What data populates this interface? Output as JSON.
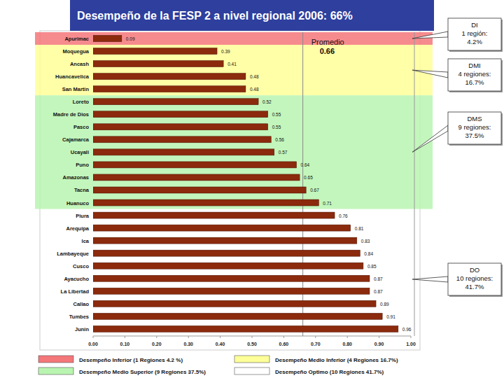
{
  "chart_data": {
    "type": "bar",
    "orientation": "horizontal",
    "title": "Desempeño de la FESP 2 a nivel regional 2006:   66%",
    "categories": [
      "Apurimac",
      "Moquegua",
      "Ancash",
      "Huancavelica",
      "San Martin",
      "Loreto",
      "Madre de Dios",
      "Pasco",
      "Cajamarca",
      "Ucayali",
      "Puno",
      "Amazonas",
      "Tacna",
      "Huanuco",
      "Piura",
      "Arequipa",
      "Ica",
      "Lambayeque",
      "Cusco",
      "Ayacucho",
      "La Libertad",
      "Callao",
      "Tumbes",
      "Junin"
    ],
    "values": [
      0.09,
      0.39,
      0.41,
      0.48,
      0.48,
      0.52,
      0.55,
      0.55,
      0.56,
      0.57,
      0.64,
      0.65,
      0.67,
      0.71,
      0.76,
      0.81,
      0.83,
      0.84,
      0.85,
      0.87,
      0.87,
      0.89,
      0.91,
      0.96
    ],
    "color": "#8b2a0c",
    "data_labels": true,
    "grid": false,
    "legend": "bottom",
    "xlim": [
      0,
      1
    ],
    "xticks": [
      {
        "value": 0,
        "label": "0.00"
      },
      {
        "value": 0.1,
        "label": "0.10"
      },
      {
        "value": 0.2,
        "label": "0.20"
      },
      {
        "value": 0.3,
        "label": "0.30"
      },
      {
        "value": 0.4,
        "label": "0.40"
      },
      {
        "value": 0.5,
        "label": "0.50"
      },
      {
        "value": 0.6,
        "label": "0.60"
      },
      {
        "value": 0.7,
        "label": "0.70"
      },
      {
        "value": 0.8,
        "label": "0.80"
      },
      {
        "value": 0.9,
        "label": "0.90"
      },
      {
        "value": 1,
        "label": "1.00"
      }
    ],
    "average": {
      "label": "Promedio",
      "value": 0.66
    },
    "bands": [
      {
        "name": "Desempeño Inferior (1  Regiones  4.2 %)",
        "color": "#f4777a",
        "regions": 1,
        "callout": [
          "DI",
          "1 región:",
          "4.2%"
        ]
      },
      {
        "name": "Desempeño Medio Inferior (4 Regiones  16.7%)",
        "color": "#ffff99",
        "regions": 4,
        "callout": [
          "DMI",
          "4 regiones:",
          "16.7%"
        ]
      },
      {
        "name": "Desempeño Medio Superior (9 Regiones  37.5%)",
        "color": "#b9f5b0",
        "regions": 9,
        "callout": [
          "DMS",
          "9 regiones:",
          "37.5%"
        ]
      },
      {
        "name": "Desempeño Optimo (10 Regiones 41.7%)",
        "color": "#ffffff",
        "regions": 10,
        "callout": [
          "DO",
          "10 regiones:",
          "41.7%"
        ]
      }
    ]
  }
}
